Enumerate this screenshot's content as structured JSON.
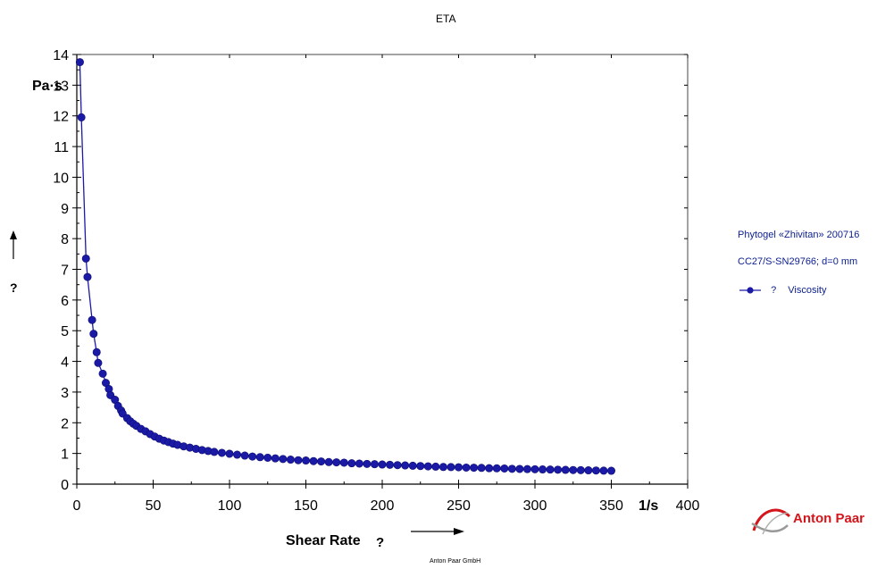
{
  "chart_data": {
    "type": "scatter",
    "title": "ETA",
    "xlabel": "Shear Rate",
    "xlabel_symbol": "?",
    "x_unit": "1/s",
    "ylabel": "?",
    "y_unit": "Pa·s",
    "xlim": [
      0,
      400
    ],
    "ylim": [
      0,
      14
    ],
    "xticks": [
      "0",
      "50",
      "100",
      "150",
      "200",
      "250",
      "300",
      "350",
      "400"
    ],
    "yticks": [
      "0",
      "1",
      "2",
      "3",
      "4",
      "5",
      "6",
      "7",
      "8",
      "9",
      "10",
      "11",
      "12",
      "13",
      "14"
    ],
    "grid": false,
    "legend_position": "right",
    "series": [
      {
        "name": "Viscosity",
        "symbol": "?",
        "color": "#1a1aa6",
        "marker": "filled-circle",
        "line": true,
        "points": [
          [
            2,
            13.75
          ],
          [
            3,
            11.95
          ],
          [
            6,
            7.35
          ],
          [
            7,
            6.75
          ],
          [
            10,
            5.35
          ],
          [
            11,
            4.9
          ],
          [
            13,
            4.3
          ],
          [
            14,
            3.95
          ],
          [
            17,
            3.6
          ],
          [
            19,
            3.3
          ],
          [
            21,
            3.1
          ],
          [
            22,
            2.9
          ],
          [
            25,
            2.75
          ],
          [
            27,
            2.55
          ],
          [
            29,
            2.4
          ],
          [
            30,
            2.3
          ],
          [
            33,
            2.15
          ],
          [
            35,
            2.05
          ],
          [
            37,
            1.97
          ],
          [
            39,
            1.9
          ],
          [
            42,
            1.8
          ],
          [
            45,
            1.72
          ],
          [
            48,
            1.63
          ],
          [
            51,
            1.55
          ],
          [
            54,
            1.48
          ],
          [
            57,
            1.42
          ],
          [
            60,
            1.37
          ],
          [
            63,
            1.32
          ],
          [
            66,
            1.28
          ],
          [
            70,
            1.23
          ],
          [
            74,
            1.19
          ],
          [
            78,
            1.15
          ],
          [
            82,
            1.11
          ],
          [
            86,
            1.08
          ],
          [
            90,
            1.05
          ],
          [
            95,
            1.02
          ],
          [
            100,
            0.99
          ],
          [
            105,
            0.96
          ],
          [
            110,
            0.93
          ],
          [
            115,
            0.9
          ],
          [
            120,
            0.88
          ],
          [
            125,
            0.86
          ],
          [
            130,
            0.84
          ],
          [
            135,
            0.82
          ],
          [
            140,
            0.8
          ],
          [
            145,
            0.78
          ],
          [
            150,
            0.77
          ],
          [
            155,
            0.75
          ],
          [
            160,
            0.74
          ],
          [
            165,
            0.72
          ],
          [
            170,
            0.71
          ],
          [
            175,
            0.7
          ],
          [
            180,
            0.68
          ],
          [
            185,
            0.67
          ],
          [
            190,
            0.66
          ],
          [
            195,
            0.65
          ],
          [
            200,
            0.64
          ],
          [
            205,
            0.63
          ],
          [
            210,
            0.62
          ],
          [
            215,
            0.61
          ],
          [
            220,
            0.6
          ],
          [
            225,
            0.59
          ],
          [
            230,
            0.58
          ],
          [
            235,
            0.57
          ],
          [
            240,
            0.56
          ],
          [
            245,
            0.555
          ],
          [
            250,
            0.55
          ],
          [
            255,
            0.54
          ],
          [
            260,
            0.535
          ],
          [
            265,
            0.53
          ],
          [
            270,
            0.52
          ],
          [
            275,
            0.515
          ],
          [
            280,
            0.51
          ],
          [
            285,
            0.5
          ],
          [
            290,
            0.495
          ],
          [
            295,
            0.49
          ],
          [
            300,
            0.485
          ],
          [
            305,
            0.48
          ],
          [
            310,
            0.475
          ],
          [
            315,
            0.47
          ],
          [
            320,
            0.465
          ],
          [
            325,
            0.46
          ],
          [
            330,
            0.455
          ],
          [
            335,
            0.45
          ],
          [
            340,
            0.445
          ],
          [
            345,
            0.44
          ],
          [
            350,
            0.435
          ]
        ]
      }
    ]
  },
  "legend": {
    "sample": "Phytogel «Zhivitan» 200716",
    "geometry": "CC27/S-SN29766; d=0 mm",
    "series_symbol": "?",
    "series_label": "Viscosity"
  },
  "brand": {
    "name": "Anton Paar",
    "color": "#d4151b"
  },
  "footer": "Anton Paar GmbH"
}
